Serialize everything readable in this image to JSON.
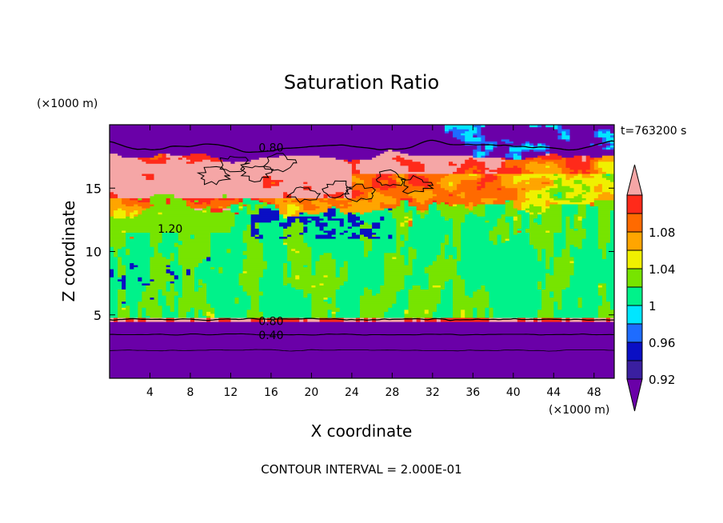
{
  "chart_data": {
    "type": "heatmap",
    "title": "Saturation Ratio",
    "xlabel": "X coordinate",
    "ylabel": "Z coordinate",
    "x_unit": "(×1000 m)",
    "y_unit": "(×1000 m)",
    "time_label": "t=763200 s",
    "footer": "CONTOUR INTERVAL = 2.000E-01",
    "xlim": [
      0,
      50
    ],
    "ylim": [
      0,
      20
    ],
    "x_ticks": [
      4,
      8,
      12,
      16,
      20,
      24,
      28,
      32,
      36,
      40,
      44,
      48
    ],
    "y_ticks": [
      5,
      10,
      15
    ],
    "colorbar": {
      "levels": [
        0.92,
        0.94,
        0.96,
        0.98,
        1.0,
        1.02,
        1.04,
        1.06,
        1.08,
        1.1
      ],
      "labels": [
        "0.92",
        "0.96",
        "1",
        "1.04",
        "1.08"
      ],
      "label_values": [
        0.92,
        0.96,
        1.0,
        1.04,
        1.08
      ],
      "colors": [
        "#6a00a8",
        "#3a1fa0",
        "#0a0fc4",
        "#1e6cff",
        "#00e6ff",
        "#00f28a",
        "#77e400",
        "#f0f000",
        "#ffa500",
        "#ff6a00",
        "#ff2a1a",
        "#f5a6a6"
      ]
    },
    "layers": [
      {
        "z_bottom": 0,
        "z_top": 4.7,
        "saturation_ratio": "< 0.92"
      },
      {
        "z_bottom": 4.7,
        "z_top": 13.5,
        "saturation_ratio": "0.98–1.02"
      },
      {
        "z_bottom": 13.5,
        "z_top": 17.5,
        "saturation_ratio": "1.04–1.20"
      },
      {
        "z_bottom": 17.5,
        "z_top": 20,
        "saturation_ratio": "< 0.92"
      }
    ],
    "contours": [
      {
        "label": "0.80",
        "x": 16,
        "z": 18.2
      },
      {
        "label": "1.20",
        "x": 6,
        "z": 11.8
      },
      {
        "label": "0.80",
        "x": 16,
        "z": 4.5
      },
      {
        "label": "0.40",
        "x": 16,
        "z": 3.4
      }
    ]
  }
}
